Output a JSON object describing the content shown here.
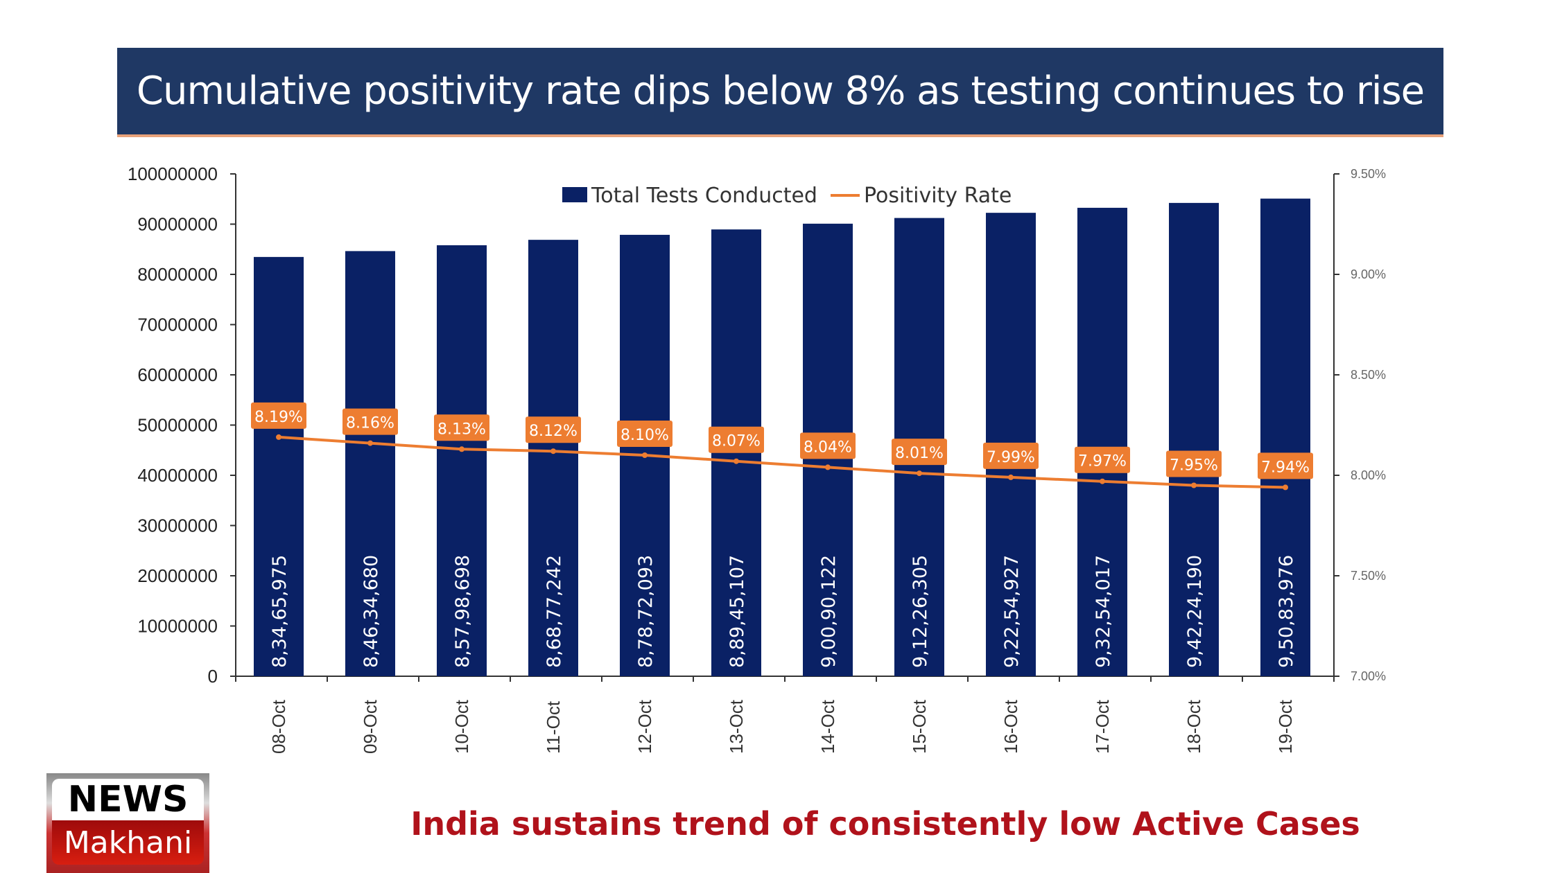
{
  "chart_data": {
    "type": "bar+line",
    "title": "Cumulative positivity rate dips below 8% as testing continues to rise",
    "categories": [
      "08-Oct",
      "09-Oct",
      "10-Oct",
      "11-Oct",
      "12-Oct",
      "13-Oct",
      "14-Oct",
      "15-Oct",
      "16-Oct",
      "17-Oct",
      "18-Oct",
      "19-Oct"
    ],
    "series": [
      {
        "name": "Total Tests Conducted",
        "type": "bar",
        "axis": "left",
        "color": "#0a2165",
        "values": [
          83465975,
          84634680,
          85798698,
          86877242,
          87872093,
          88945107,
          90090122,
          91226305,
          92254927,
          93254017,
          94224190,
          95083976
        ],
        "labels": [
          "8,34,65,975",
          "8,46,34,680",
          "8,57,98,698",
          "8,68,77,242",
          "8,78,72,093",
          "8,89,45,107",
          "9,00,90,122",
          "9,12,26,305",
          "9,22,54,927",
          "9,32,54,017",
          "9,42,24,190",
          "9,50,83,976"
        ]
      },
      {
        "name": "Positivity Rate",
        "type": "line",
        "axis": "right",
        "color": "#ed7d31",
        "values": [
          8.19,
          8.16,
          8.13,
          8.12,
          8.1,
          8.07,
          8.04,
          8.01,
          7.99,
          7.97,
          7.95,
          7.94
        ],
        "labels": [
          "8.19%",
          "8.16%",
          "8.13%",
          "8.12%",
          "8.10%",
          "8.07%",
          "8.04%",
          "8.01%",
          "7.99%",
          "7.97%",
          "7.95%",
          "7.94%"
        ]
      }
    ],
    "y_left": {
      "range": [
        0,
        100000000
      ],
      "ticks": [
        "0",
        "10000000",
        "20000000",
        "30000000",
        "40000000",
        "50000000",
        "60000000",
        "70000000",
        "80000000",
        "90000000",
        "100000000"
      ]
    },
    "y_right": {
      "range": [
        7.0,
        9.5
      ],
      "ticks": [
        "7.00%",
        "7.50%",
        "8.00%",
        "8.50%",
        "9.00%",
        "9.50%"
      ]
    },
    "legend": "top-center",
    "grid": false
  },
  "footer": {
    "logo_top": "NEWS",
    "logo_bottom": "Makhani",
    "caption": "India sustains trend of consistently low Active Cases"
  }
}
